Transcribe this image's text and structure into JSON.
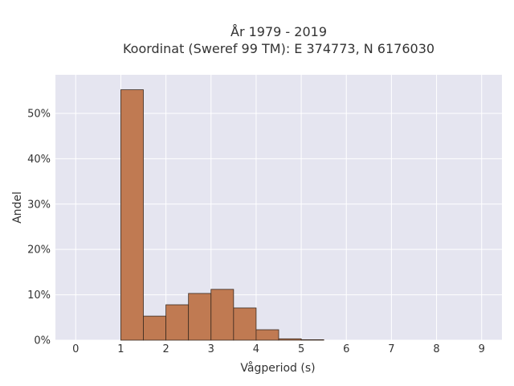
{
  "chart_data": {
    "type": "bar",
    "title_line1": "År 1979 - 2019",
    "title_line2": "Koordinat (Sweref 99 TM): E 374773, N 6176030",
    "xlabel": "Vågperiod (s)",
    "ylabel": "Andel",
    "bin_width": 0.5,
    "bins": [
      {
        "x0": 1.0,
        "x1": 1.5,
        "value": 55.2
      },
      {
        "x0": 1.5,
        "x1": 2.0,
        "value": 5.3
      },
      {
        "x0": 2.0,
        "x1": 2.5,
        "value": 7.8
      },
      {
        "x0": 2.5,
        "x1": 3.0,
        "value": 10.3
      },
      {
        "x0": 3.0,
        "x1": 3.5,
        "value": 11.2
      },
      {
        "x0": 3.5,
        "x1": 4.0,
        "value": 7.1
      },
      {
        "x0": 4.0,
        "x1": 4.5,
        "value": 2.3
      },
      {
        "x0": 4.5,
        "x1": 5.0,
        "value": 0.3
      },
      {
        "x0": 5.0,
        "x1": 5.5,
        "value": 0.1
      }
    ],
    "xlim": [
      -0.45,
      9.45
    ],
    "ylim": [
      0,
      58.5
    ],
    "x_ticks": [
      0,
      1,
      2,
      3,
      4,
      5,
      6,
      7,
      8,
      9
    ],
    "y_ticks": [
      0,
      10,
      20,
      30,
      40,
      50
    ],
    "y_tick_suffix": "%",
    "grid": true,
    "colors": {
      "bar_fill": "#c07a52",
      "bar_stroke": "#3a2a20",
      "plot_background": "#e5e5f0",
      "grid": "#ffffff"
    }
  }
}
